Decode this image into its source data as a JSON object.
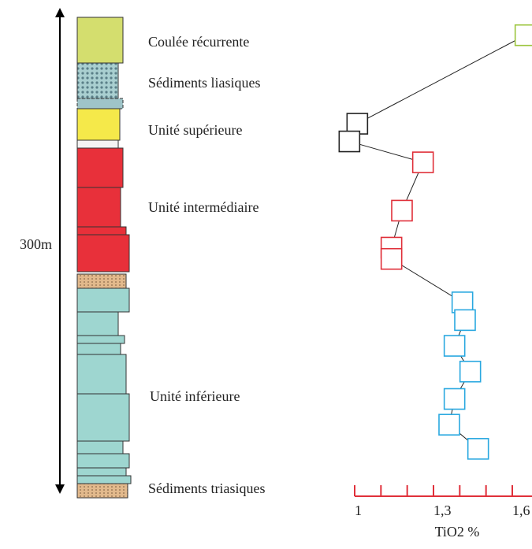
{
  "chart_data": {
    "type": "line",
    "annotations": [
      "Coulée récurrente",
      "Sédiments liasiques",
      "Unité supérieure",
      "Unité intermédiaire",
      "Unité inférieure",
      "Sédiments triasiques",
      "300m"
    ],
    "xlabel": "TiO2 %",
    "xlim": [
      1,
      1.675
    ],
    "xticks": [
      1,
      {
        "value": 1.3,
        "label": "1,3"
      },
      {
        "value": 1.6,
        "label": "1,6"
      }
    ],
    "xminor": [
      1.1,
      1.2,
      1.4,
      1.5
    ],
    "ylim": [
      0,
      300
    ],
    "axis_color": "#e0303a",
    "line_color": "#222222",
    "series": [
      {
        "color": "#9bc53d",
        "x": [
          1.65
        ],
        "values": [
          284
        ]
      },
      {
        "color": "#222222",
        "x": [
          1.01,
          0.98
        ],
        "values": [
          229,
          218
        ]
      },
      {
        "color": "#e0303a",
        "x": [
          1.26,
          1.18,
          1.14,
          1.14
        ],
        "values": [
          205,
          175,
          152,
          145
        ]
      },
      {
        "color": "#29a8e0",
        "x": [
          1.41,
          1.42,
          1.38,
          1.44,
          1.38,
          1.36,
          1.47
        ],
        "values": [
          118,
          107,
          91,
          75,
          58,
          42,
          27
        ]
      }
    ]
  }
}
